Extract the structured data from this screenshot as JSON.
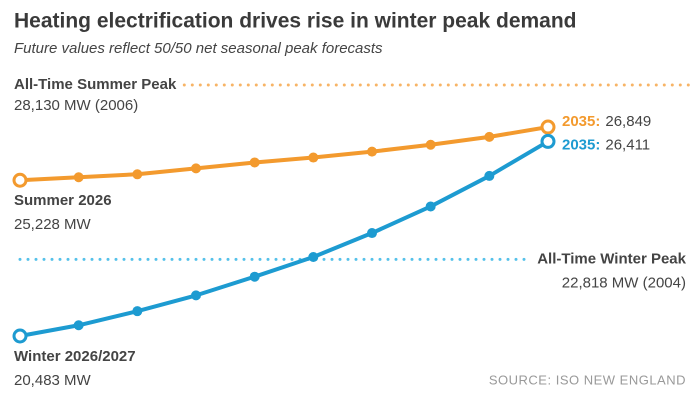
{
  "chart_data": {
    "type": "line",
    "title": "Heating electrification drives rise in winter peak demand",
    "subtitle": "Future values reflect 50/50 net seasonal peak forecasts",
    "source": "SOURCE: ISO NEW ENGLAND",
    "series": [
      {
        "name": "Summer 2026",
        "end_label": "2035:",
        "color": "#f39a2e",
        "values": [
          25228,
          25320,
          25410,
          25590,
          25770,
          25920,
          26100,
          26310,
          26550,
          26849
        ],
        "value_labels": [
          "25,228 MW",
          null,
          null,
          null,
          null,
          null,
          null,
          null,
          null,
          "26,849"
        ]
      },
      {
        "name": "Winter 2026/2027",
        "end_label": "2035:",
        "color": "#1d9bd1",
        "values": [
          20483,
          20810,
          21240,
          21720,
          22290,
          22890,
          23620,
          24430,
          25360,
          26411
        ],
        "value_labels": [
          "20,483 MW",
          null,
          null,
          null,
          null,
          null,
          null,
          null,
          null,
          "26,411"
        ]
      }
    ],
    "reference_lines": [
      {
        "label": "All-Time Summer Peak",
        "value": 28130,
        "value_label": "28,130 MW (2006)",
        "color": "#f7b466",
        "side": "left"
      },
      {
        "label": "All-Time Winter Peak",
        "value": 22818,
        "value_label": "22,818 MW (2004)",
        "color": "#55c1ea",
        "side": "right"
      }
    ]
  }
}
